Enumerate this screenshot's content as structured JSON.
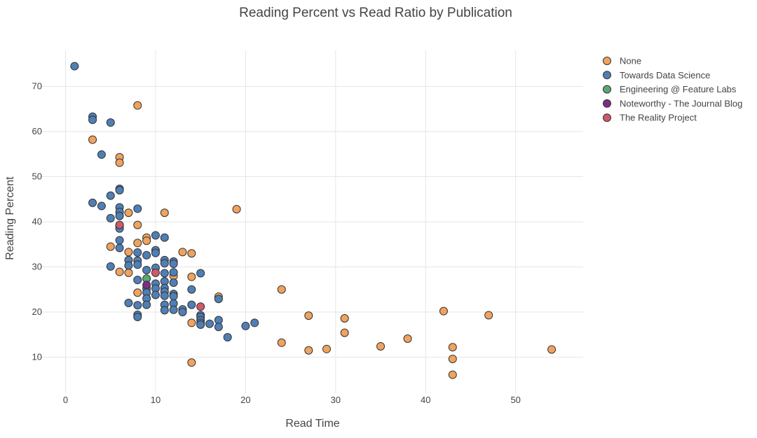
{
  "chart_data": {
    "type": "scatter",
    "title": "Reading Percent vs Read Ratio by Publication",
    "xlabel": "Read Time",
    "ylabel": "Reading Percent",
    "xlim": [
      -3,
      57.5
    ],
    "ylim": [
      2,
      78
    ],
    "xticks": [
      0,
      10,
      20,
      30,
      40,
      50
    ],
    "yticks": [
      10,
      20,
      30,
      40,
      50,
      60,
      70
    ],
    "grid": true,
    "legend_position": "top-right",
    "series": [
      {
        "name": "None",
        "color": "#f0a35e",
        "points": [
          [
            3,
            58.2
          ],
          [
            6,
            54.3
          ],
          [
            6,
            53.1
          ],
          [
            8,
            65.8
          ],
          [
            11,
            42
          ],
          [
            19,
            42.8
          ],
          [
            5,
            34.5
          ],
          [
            7,
            42
          ],
          [
            8,
            39.3
          ],
          [
            8,
            35.3
          ],
          [
            9,
            36.5
          ],
          [
            9,
            35.8
          ],
          [
            7,
            33.3
          ],
          [
            6,
            28.9
          ],
          [
            7,
            28.7
          ],
          [
            8,
            24.3
          ],
          [
            13,
            33.3
          ],
          [
            14,
            33
          ],
          [
            14,
            27.8
          ],
          [
            12,
            28
          ],
          [
            17,
            23.4
          ],
          [
            14,
            17.6
          ],
          [
            14,
            8.8
          ],
          [
            24,
            25
          ],
          [
            24,
            13.2
          ],
          [
            27,
            19.2
          ],
          [
            27,
            11.5
          ],
          [
            29,
            11.8
          ],
          [
            31,
            18.6
          ],
          [
            31,
            15.4
          ],
          [
            35,
            12.4
          ],
          [
            38,
            14.1
          ],
          [
            42,
            20.2
          ],
          [
            43,
            12.2
          ],
          [
            43,
            9.6
          ],
          [
            43,
            6.1
          ],
          [
            47,
            19.3
          ],
          [
            54,
            11.7
          ]
        ]
      },
      {
        "name": "Towards Data Science",
        "color": "#4f7fb5",
        "points": [
          [
            1,
            74.5
          ],
          [
            3,
            63.3
          ],
          [
            3,
            62.6
          ],
          [
            5,
            62
          ],
          [
            4,
            54.9
          ],
          [
            6,
            47.3
          ],
          [
            6,
            47
          ],
          [
            5,
            45.8
          ],
          [
            3,
            44.2
          ],
          [
            4,
            43.5
          ],
          [
            6,
            43.2
          ],
          [
            6,
            42.2
          ],
          [
            6,
            41.3
          ],
          [
            5,
            40.8
          ],
          [
            8,
            42.9
          ],
          [
            6,
            39
          ],
          [
            6,
            38.5
          ],
          [
            6,
            35.9
          ],
          [
            6,
            34.2
          ],
          [
            5,
            30.1
          ],
          [
            7,
            31.5
          ],
          [
            7,
            30.3
          ],
          [
            8,
            33.2
          ],
          [
            8,
            31.4
          ],
          [
            8,
            30.5
          ],
          [
            9,
            32.6
          ],
          [
            9,
            29.3
          ],
          [
            10,
            33.7
          ],
          [
            10,
            33.1
          ],
          [
            10,
            37
          ],
          [
            11,
            36.5
          ],
          [
            10,
            29.8
          ],
          [
            11,
            31.5
          ],
          [
            11,
            30.8
          ],
          [
            12,
            31.2
          ],
          [
            12,
            30.7
          ],
          [
            12,
            28.8
          ],
          [
            11,
            28.6
          ],
          [
            8,
            27.1
          ],
          [
            9,
            25.2
          ],
          [
            9,
            24.3
          ],
          [
            10,
            26.3
          ],
          [
            10,
            25.2
          ],
          [
            10,
            23.8
          ],
          [
            11,
            26.8
          ],
          [
            11,
            25.3
          ],
          [
            11,
            24.5
          ],
          [
            11,
            23.6
          ],
          [
            12,
            26.5
          ],
          [
            12,
            24
          ],
          [
            12,
            23.5
          ],
          [
            12,
            21.9
          ],
          [
            9,
            23
          ],
          [
            9,
            21.6
          ],
          [
            8,
            21.5
          ],
          [
            7,
            22
          ],
          [
            8,
            19.4
          ],
          [
            8,
            18.9
          ],
          [
            11,
            21.6
          ],
          [
            11,
            20.4
          ],
          [
            12,
            20.5
          ],
          [
            13,
            20.6
          ],
          [
            13,
            20
          ],
          [
            14,
            25
          ],
          [
            14,
            21.6
          ],
          [
            15,
            28.6
          ],
          [
            15,
            19.3
          ],
          [
            15,
            18.9
          ],
          [
            15,
            18.2
          ],
          [
            15,
            17.6
          ],
          [
            15,
            17.2
          ],
          [
            16,
            17.4
          ],
          [
            17,
            22.9
          ],
          [
            17,
            18.2
          ],
          [
            17,
            16.7
          ],
          [
            18,
            14.4
          ],
          [
            20,
            16.9
          ],
          [
            21,
            17.6
          ]
        ]
      },
      {
        "name": "Engineering @ Feature Labs",
        "color": "#5aa874",
        "points": [
          [
            9,
            27.4
          ]
        ]
      },
      {
        "name": "Noteworthy - The Journal Blog",
        "color": "#7b2d83",
        "points": [
          [
            9,
            26
          ]
        ]
      },
      {
        "name": "The Reality Project",
        "color": "#cc5a6a",
        "points": [
          [
            6,
            39.3
          ],
          [
            10,
            28.7
          ],
          [
            15,
            21.2
          ]
        ]
      }
    ]
  }
}
